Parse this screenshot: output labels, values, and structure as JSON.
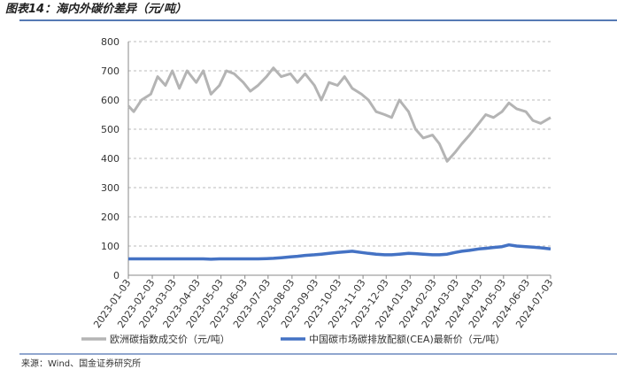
{
  "chart_data": {
    "type": "line",
    "title": "图表14：海内外碳价差异（元/吨）",
    "source": "来源：Wind、国金证券研究所",
    "x": [
      "2023-01-03",
      "2023-01-10",
      "2023-01-20",
      "2023-02-01",
      "2023-02-10",
      "2023-02-20",
      "2023-03-01",
      "2023-03-10",
      "2023-03-20",
      "2023-04-01",
      "2023-04-10",
      "2023-04-20",
      "2023-05-01",
      "2023-05-10",
      "2023-05-20",
      "2023-06-01",
      "2023-06-10",
      "2023-06-20",
      "2023-07-01",
      "2023-07-10",
      "2023-07-20",
      "2023-08-01",
      "2023-08-10",
      "2023-08-20",
      "2023-09-01",
      "2023-09-10",
      "2023-09-20",
      "2023-10-01",
      "2023-10-10",
      "2023-10-20",
      "2023-11-01",
      "2023-11-10",
      "2023-11-20",
      "2023-12-01",
      "2023-12-10",
      "2023-12-20",
      "2024-01-01",
      "2024-01-10",
      "2024-01-20",
      "2024-02-01",
      "2024-02-10",
      "2024-02-20",
      "2024-03-01",
      "2024-03-10",
      "2024-03-20",
      "2024-04-01",
      "2024-04-10",
      "2024-04-20",
      "2024-05-01",
      "2024-05-10",
      "2024-05-20",
      "2024-06-01",
      "2024-06-10",
      "2024-06-20",
      "2024-07-03"
    ],
    "series": [
      {
        "name": "欧洲碳指数成交价（元/吨）",
        "color": "#b4b4b4",
        "values": [
          580,
          560,
          600,
          620,
          680,
          650,
          700,
          640,
          700,
          660,
          700,
          620,
          650,
          700,
          690,
          660,
          630,
          650,
          680,
          710,
          680,
          690,
          660,
          690,
          650,
          600,
          660,
          650,
          680,
          640,
          620,
          600,
          560,
          550,
          540,
          600,
          560,
          500,
          470,
          480,
          450,
          390,
          420,
          450,
          480,
          520,
          550,
          540,
          560,
          590,
          570,
          560,
          530,
          520,
          540
        ]
      },
      {
        "name": "中国碳市场碳排放配额(CEA)最新价（元/吨）",
        "color": "#4472c4",
        "values": [
          56,
          56,
          56,
          56,
          56,
          56,
          56,
          56,
          56,
          56,
          56,
          55,
          56,
          56,
          56,
          56,
          56,
          56,
          57,
          58,
          60,
          63,
          65,
          68,
          70,
          72,
          75,
          78,
          80,
          82,
          78,
          75,
          72,
          70,
          70,
          72,
          75,
          74,
          72,
          70,
          70,
          72,
          78,
          82,
          85,
          90,
          92,
          95,
          98,
          104,
          100,
          98,
          96,
          94,
          90
        ]
      }
    ],
    "xticks": [
      "2023-01-03",
      "2023-02-03",
      "2023-03-03",
      "2023-04-03",
      "2023-05-03",
      "2023-06-03",
      "2023-07-03",
      "2023-08-03",
      "2023-09-03",
      "2023-10-03",
      "2023-11-03",
      "2023-12-03",
      "2024-01-03",
      "2024-02-03",
      "2024-03-03",
      "2024-04-03",
      "2024-05-03",
      "2024-06-03",
      "2024-07-03"
    ],
    "ylim": [
      0,
      800
    ],
    "yticks": [
      0,
      100,
      200,
      300,
      400,
      500,
      600,
      700,
      800
    ],
    "grid": true
  }
}
